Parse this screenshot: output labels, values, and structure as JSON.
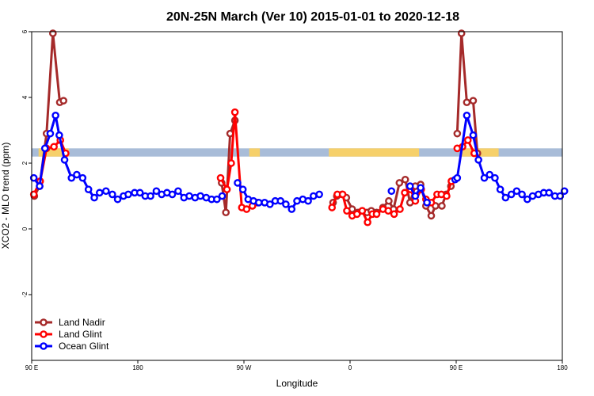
{
  "chart_data": {
    "type": "line",
    "title": "20N-25N March (Ver 10)   2015-01-01 to 2020-12-18",
    "xlabel": "Longitude",
    "ylabel": "XCO2 - MLO trend (ppm)",
    "xlim": [
      0,
      100
    ],
    "ylim": [
      -4,
      6
    ],
    "x_ticks": [
      {
        "value": 0,
        "label": "90 E"
      },
      {
        "value": 20,
        "label": "180"
      },
      {
        "value": 40,
        "label": "90 W"
      },
      {
        "value": 60,
        "label": "0"
      },
      {
        "value": 80,
        "label": "90 E"
      },
      {
        "value": 100,
        "label": "180"
      }
    ],
    "y_ticks": [
      {
        "value": -2,
        "label": "-2"
      },
      {
        "value": 0,
        "label": "0"
      },
      {
        "value": 2,
        "label": "2"
      },
      {
        "value": 4,
        "label": "4"
      },
      {
        "value": 6,
        "label": "6"
      }
    ],
    "latitude_band": {
      "y_range": [
        2.2,
        2.45
      ],
      "ocean_color": "#a8bcd8",
      "land_color": "#f6d06a",
      "land_segments": [
        [
          1.3,
          7.0
        ],
        [
          41.0,
          43.0
        ],
        [
          56.0,
          73.0
        ],
        [
          81.0,
          88.0
        ]
      ]
    },
    "legend": {
      "position": "bottom-left"
    },
    "series": [
      {
        "name": "Land Nadir",
        "color": "#a52a2a",
        "segments": [
          {
            "x": [
              0.5,
              1.5,
              2.8,
              4.0,
              5.3,
              6.0
            ],
            "y": [
              1.0,
              1.3,
              2.9,
              5.95,
              3.85,
              3.9
            ]
          },
          {
            "x": [
              35.8,
              36.6,
              37.4,
              38.3
            ],
            "y": [
              1.4,
              0.5,
              2.9,
              3.3
            ]
          },
          {
            "x": [
              56.8,
              57.5,
              58.5,
              59.3,
              60.4,
              61.5,
              62.3,
              63.2,
              64.0,
              65.0,
              66.2,
              67.3,
              68.2,
              69.3,
              70.4,
              71.3,
              72.3,
              73.3,
              74.3,
              75.3,
              76.1,
              77.3,
              78.1,
              79.0
            ],
            "y": [
              0.8,
              1.0,
              1.05,
              0.95,
              0.6,
              0.5,
              0.55,
              0.5,
              0.55,
              0.5,
              0.65,
              0.85,
              0.6,
              1.4,
              1.5,
              0.8,
              1.3,
              1.35,
              0.7,
              0.4,
              0.7,
              0.7,
              1.05,
              1.3
            ]
          },
          {
            "x": [
              80.2,
              81.0,
              82.0,
              83.2,
              84.0
            ],
            "y": [
              2.9,
              5.95,
              3.85,
              3.9,
              2.3
            ]
          }
        ]
      },
      {
        "name": "Land Glint",
        "color": "#ff0000",
        "segments": [
          {
            "x": [
              0.4,
              1.6,
              2.8,
              4.2,
              5.4,
              6.4
            ],
            "y": [
              1.05,
              1.45,
              2.45,
              2.5,
              2.7,
              2.3
            ]
          },
          {
            "x": [
              35.6,
              36.8,
              37.6,
              38.3,
              39.6,
              40.5,
              41.6,
              42.6
            ],
            "y": [
              1.55,
              1.2,
              2.0,
              3.55,
              0.65,
              0.6,
              0.7,
              0.8
            ]
          },
          {
            "x": [
              56.6,
              57.6,
              58.6,
              59.4,
              60.4,
              61.3,
              62.3,
              63.3,
              64.2,
              65.0,
              66.2,
              67.2,
              68.3,
              69.4,
              70.3,
              71.4,
              72.3,
              73.4,
              74.3,
              75.3,
              76.4,
              77.2,
              78.2,
              79.1
            ],
            "y": [
              0.65,
              1.05,
              1.05,
              0.55,
              0.4,
              0.45,
              0.55,
              0.2,
              0.45,
              0.45,
              0.6,
              0.55,
              0.45,
              0.6,
              1.1,
              1.2,
              0.85,
              1.2,
              0.9,
              0.8,
              1.05,
              1.05,
              1.0,
              1.45
            ]
          },
          {
            "x": [
              80.2,
              81.2,
              82.2,
              83.4
            ],
            "y": [
              2.45,
              2.5,
              2.7,
              2.3
            ]
          }
        ]
      },
      {
        "name": "Ocean Glint",
        "color": "#0000ff",
        "segments": [
          {
            "x": [
              0.4,
              1.5,
              2.5,
              3.5,
              4.5,
              5.2,
              6.2,
              7.5,
              8.5,
              9.6,
              10.7,
              11.8,
              12.8,
              14.0,
              15.2,
              16.2,
              17.3,
              18.2,
              19.4,
              20.4,
              21.4,
              22.4,
              23.5,
              24.5,
              25.5,
              26.5,
              27.6,
              28.7,
              29.7,
              30.8,
              31.8,
              32.9,
              33.9,
              34.9,
              35.9
            ],
            "y": [
              1.55,
              1.3,
              2.45,
              2.9,
              3.45,
              2.85,
              2.1,
              1.55,
              1.65,
              1.55,
              1.2,
              0.95,
              1.1,
              1.15,
              1.05,
              0.9,
              1.0,
              1.05,
              1.1,
              1.1,
              1.0,
              1.0,
              1.15,
              1.05,
              1.1,
              1.05,
              1.15,
              0.95,
              1.0,
              0.95,
              1.0,
              0.95,
              0.9,
              0.9,
              1.0
            ]
          },
          {
            "x": [
              38.8,
              39.8,
              40.8,
              41.8,
              42.8,
              43.9,
              44.9,
              45.9,
              46.9,
              47.9,
              49.0,
              50.0,
              51.1,
              52.1,
              53.1,
              54.2
            ],
            "y": [
              1.4,
              1.2,
              0.9,
              0.85,
              0.8,
              0.8,
              0.75,
              0.85,
              0.85,
              0.75,
              0.6,
              0.85,
              0.9,
              0.85,
              1.0,
              1.05
            ]
          },
          {
            "x": [
              67.8
            ],
            "y": [
              1.15
            ]
          },
          {
            "x": [
              71.3,
              72.3,
              73.3,
              74.5
            ],
            "y": [
              1.3,
              1.0,
              1.25,
              0.8
            ]
          },
          {
            "x": [
              79.8,
              80.2,
              82.0,
              83.2,
              84.2,
              85.3,
              86.3,
              87.3,
              88.3,
              89.3,
              90.4,
              91.4,
              92.4,
              93.4,
              94.4,
              95.5,
              96.5,
              97.5,
              98.6,
              99.6,
              100.4
            ],
            "y": [
              1.5,
              1.55,
              3.45,
              2.85,
              2.1,
              1.55,
              1.65,
              1.55,
              1.2,
              0.95,
              1.05,
              1.15,
              1.05,
              0.9,
              1.0,
              1.05,
              1.1,
              1.1,
              1.0,
              1.0,
              1.15
            ]
          }
        ]
      }
    ]
  }
}
